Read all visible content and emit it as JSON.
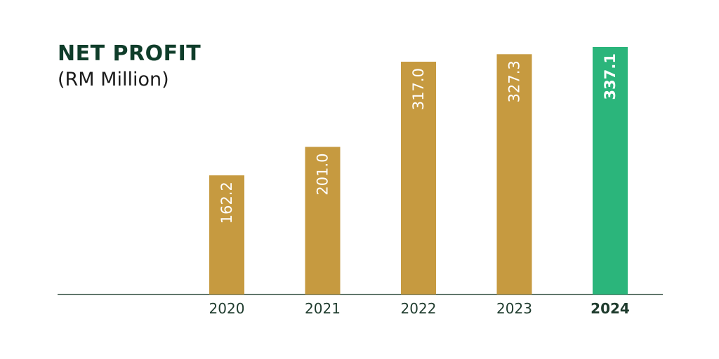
{
  "chart_data": {
    "type": "bar",
    "title": "NET PROFIT",
    "subtitle": "(RM Million)",
    "categories": [
      "2020",
      "2021",
      "2022",
      "2023",
      "2024"
    ],
    "values": [
      162.2,
      201.0,
      317.0,
      327.3,
      337.1
    ],
    "value_labels": [
      "162.2",
      "201.0",
      "317.0",
      "327.3",
      "337.1"
    ],
    "highlight_index": 4,
    "ylim": [
      0,
      337.1
    ],
    "grid": false,
    "legend": "none",
    "colors": {
      "bar": "#c69a40",
      "highlight_bar": "#2bb57b",
      "title": "#0f3d2a",
      "axis": "#2f4a3c",
      "tick_label": "#1e3b2d",
      "value_label": "#ffffff"
    }
  }
}
